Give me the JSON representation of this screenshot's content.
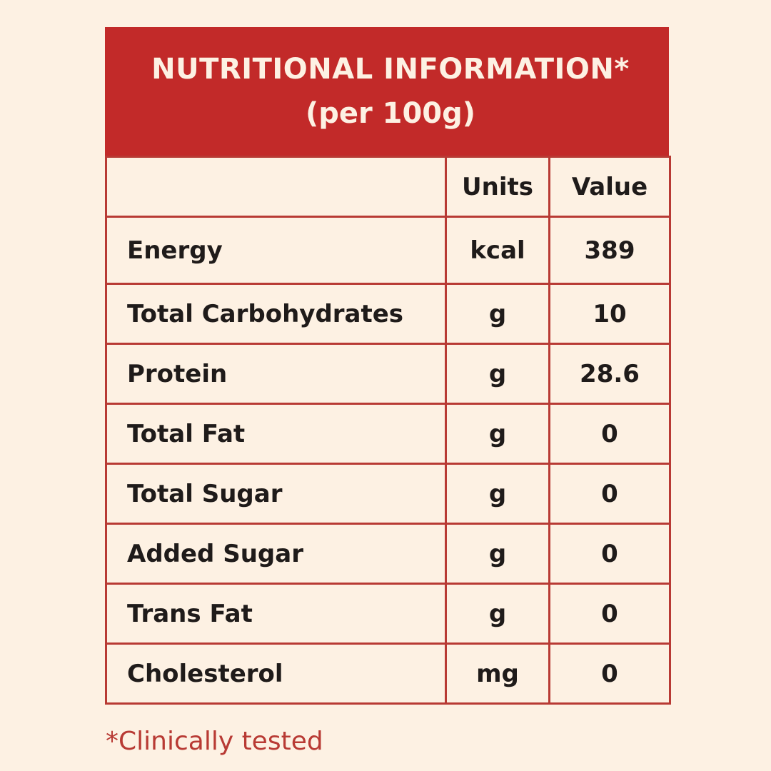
{
  "header": {
    "title": "NUTRITIONAL INFORMATION*",
    "subtitle": "(per 100g)"
  },
  "columns": {
    "name": "",
    "units": "Units",
    "value": "Value"
  },
  "rows": [
    {
      "name": "Energy",
      "unit": "kcal",
      "value": "389"
    },
    {
      "name": "Total Carbohydrates",
      "unit": "g",
      "value": "10"
    },
    {
      "name": "Protein",
      "unit": "g",
      "value": "28.6"
    },
    {
      "name": "Total Fat",
      "unit": "g",
      "value": "0"
    },
    {
      "name": "Total Sugar",
      "unit": "g",
      "value": "0"
    },
    {
      "name": "Added Sugar",
      "unit": "g",
      "value": "0"
    },
    {
      "name": "Trans Fat",
      "unit": "g",
      "value": "0"
    },
    {
      "name": "Cholesterol",
      "unit": "mg",
      "value": "0"
    }
  ],
  "footnote": "*Clinically tested",
  "colors": {
    "background": "#fdf1e3",
    "accent": "#c22a29",
    "border": "#b83a34",
    "text": "#1f1b1a"
  }
}
